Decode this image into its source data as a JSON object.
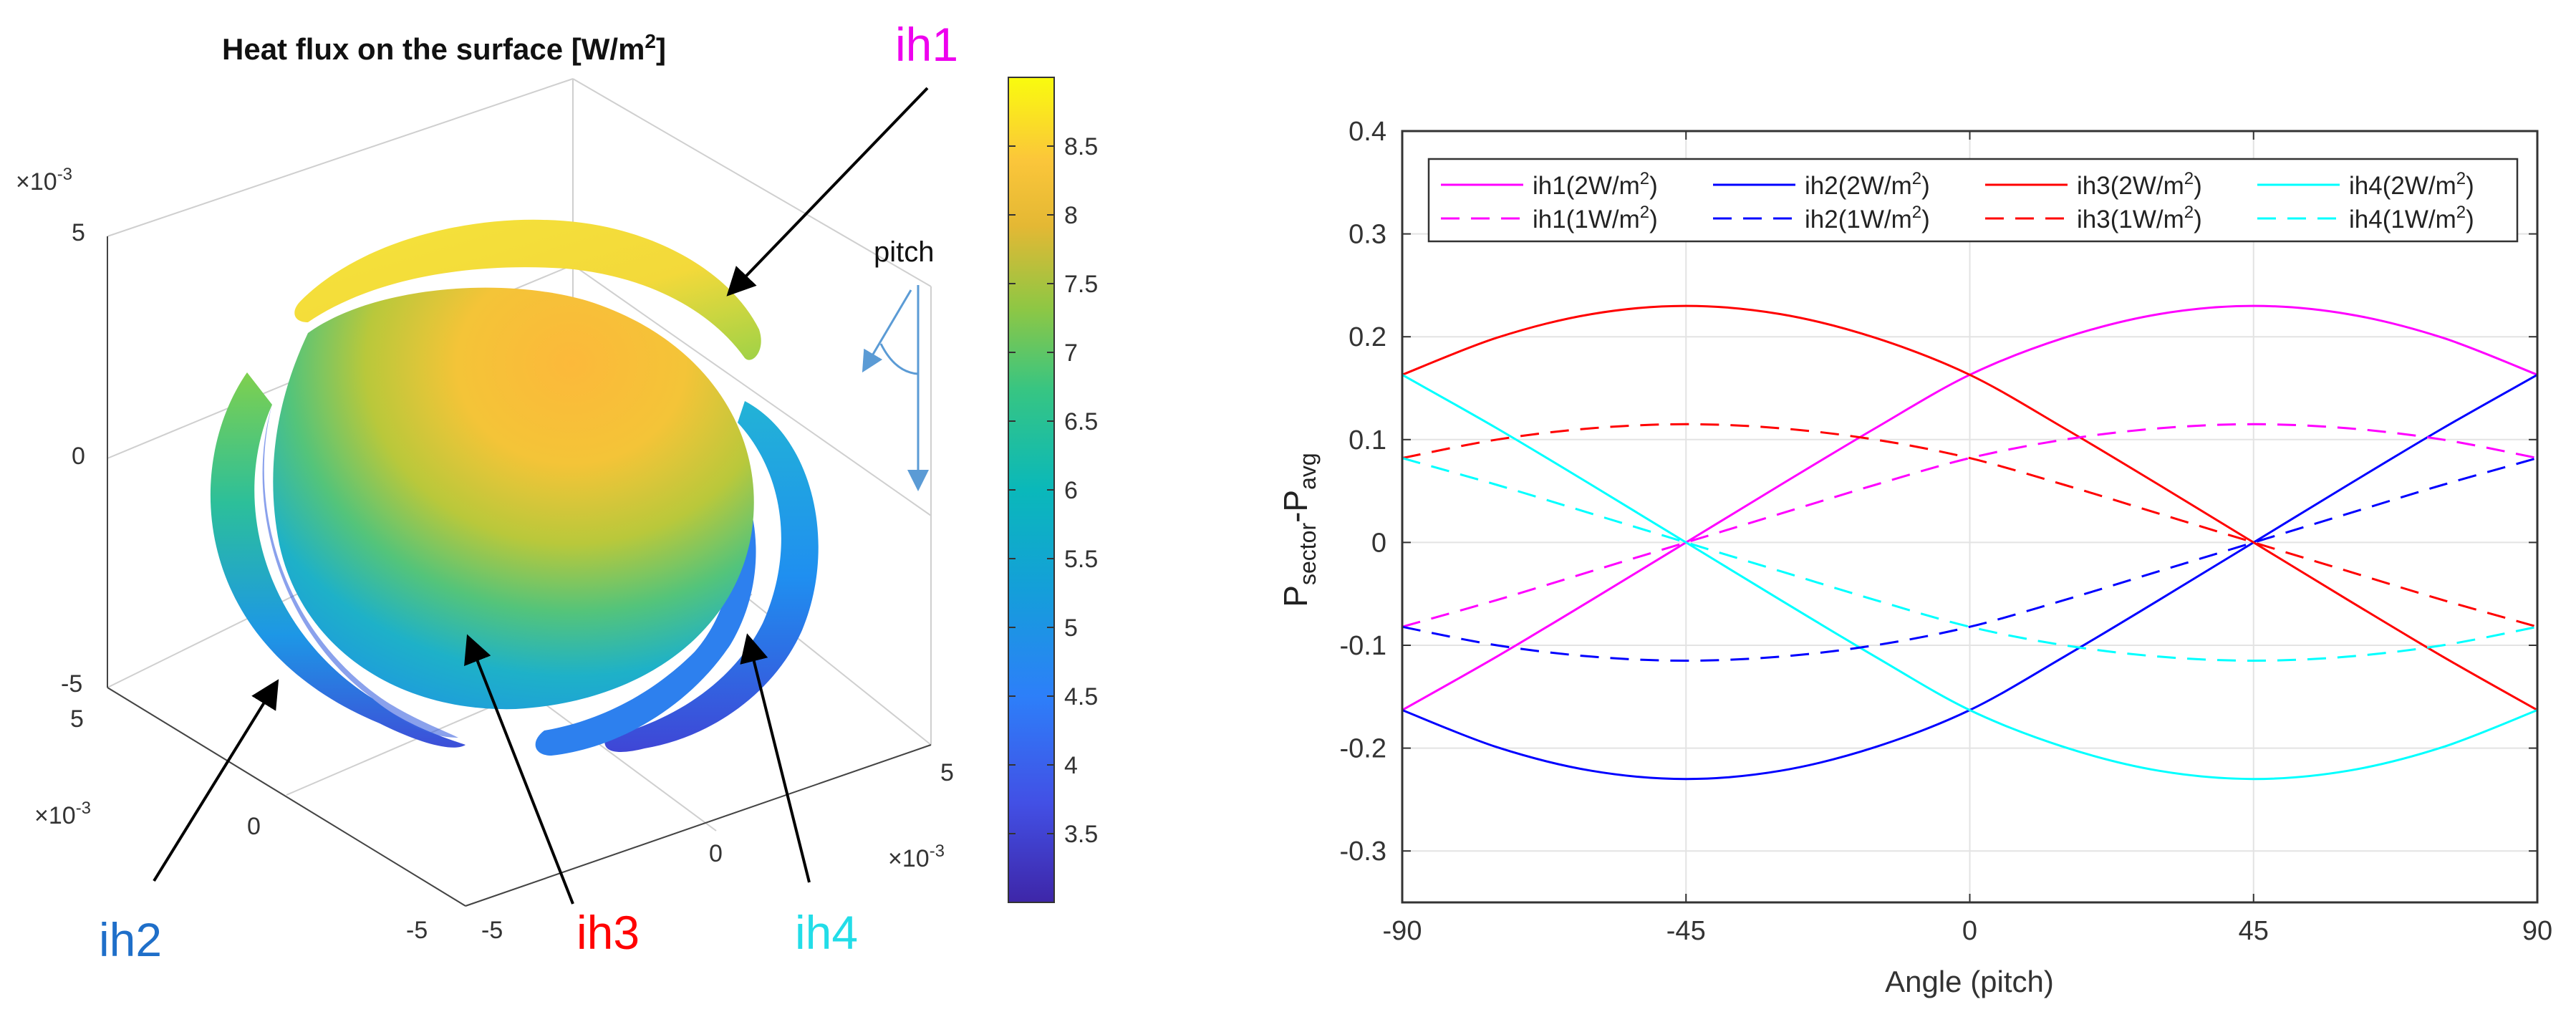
{
  "colors": {
    "ih1": "#ff00ff",
    "ih2": "#0000ff",
    "ih3": "#ff0000",
    "ih4": "#00ffff",
    "ih2_label": "#1f6fc9",
    "ih3_label": "#ff0000",
    "ih4_label": "#22dde8",
    "ih1_label": "#ee00ee",
    "pitch_arrow": "#5b9bd5"
  },
  "left_panel": {
    "title_main": "Heat flux on the surface [W/m",
    "title_sup": "2",
    "title_end": "]",
    "z_exponent_base": "×10",
    "z_exponent_power": "-3",
    "z_ticks": [
      "5",
      "0",
      "-5"
    ],
    "x_exponent_base": "×10",
    "x_exponent_power": "-3",
    "x_ticks": [
      "5",
      "0",
      "-5"
    ],
    "y_exponent_base": "×10",
    "y_exponent_power": "-3",
    "y_ticks": [
      "-5",
      "0",
      "5"
    ],
    "colorbar_ticks": [
      "8.5",
      "8",
      "7.5",
      "7",
      "6.5",
      "6",
      "5.5",
      "5",
      "4.5",
      "4",
      "3.5"
    ],
    "colorbar_range": [
      3.0,
      9.0
    ],
    "callouts": {
      "ih1": "ih1",
      "ih2": "ih2",
      "ih3": "ih3",
      "ih4": "ih4",
      "pitch": "pitch"
    }
  },
  "chart_data": {
    "type": "line",
    "title": "",
    "xlabel": "Angle (pitch)",
    "ylabel_main": "P",
    "ylabel_sub1": "sector",
    "ylabel_mid": "-P",
    "ylabel_sub2": "avg",
    "xlim": [
      -90,
      90
    ],
    "ylim": [
      -0.35,
      0.4
    ],
    "x_ticks": [
      -90,
      -45,
      0,
      45,
      90
    ],
    "x_tick_labels": [
      "-90",
      "-45",
      "0",
      "45",
      "90"
    ],
    "y_ticks": [
      -0.3,
      -0.2,
      -0.1,
      0,
      0.1,
      0.2,
      0.3,
      0.4
    ],
    "y_tick_labels": [
      "-0.3",
      "-0.2",
      "-0.1",
      "0",
      "0.1",
      "0.2",
      "0.3",
      "0.4"
    ],
    "grid": true,
    "legend_position": "top",
    "x": [
      -90,
      -75,
      -60,
      -45,
      -30,
      -15,
      0,
      15,
      30,
      45,
      60,
      75,
      90
    ],
    "series": [
      {
        "name": "ih1(2W/m²)",
        "legend_base": "ih1(2W/m",
        "legend_end": ")",
        "color": "ih1",
        "dash": "solid",
        "values": [
          -0.163,
          -0.111,
          -0.056,
          0.0,
          0.056,
          0.111,
          0.163,
          0.199,
          0.222,
          0.23,
          0.222,
          0.199,
          0.163
        ]
      },
      {
        "name": "ih2(2W/m²)",
        "legend_base": "ih2(2W/m",
        "legend_end": ")",
        "color": "ih2",
        "dash": "solid",
        "values": [
          -0.163,
          -0.199,
          -0.222,
          -0.23,
          -0.222,
          -0.199,
          -0.163,
          -0.111,
          -0.056,
          0.0,
          0.056,
          0.111,
          0.163
        ]
      },
      {
        "name": "ih3(2W/m²)",
        "legend_base": "ih3(2W/m",
        "legend_end": ")",
        "color": "ih3",
        "dash": "solid",
        "values": [
          0.163,
          0.199,
          0.222,
          0.23,
          0.222,
          0.199,
          0.163,
          0.111,
          0.056,
          0.0,
          -0.056,
          -0.111,
          -0.163
        ]
      },
      {
        "name": "ih4(2W/m²)",
        "legend_base": "ih4(2W/m",
        "legend_end": ")",
        "color": "ih4",
        "dash": "solid",
        "values": [
          0.163,
          0.111,
          0.056,
          0.0,
          -0.056,
          -0.111,
          -0.163,
          -0.199,
          -0.222,
          -0.23,
          -0.222,
          -0.199,
          -0.163
        ]
      },
      {
        "name": "ih1(1W/m²)",
        "legend_base": "ih1(1W/m",
        "legend_end": ")",
        "color": "ih1",
        "dash": "dashed",
        "values": [
          -0.082,
          -0.056,
          -0.028,
          0.0,
          0.028,
          0.056,
          0.082,
          0.1,
          0.111,
          0.115,
          0.111,
          0.1,
          0.082
        ]
      },
      {
        "name": "ih2(1W/m²)",
        "legend_base": "ih2(1W/m",
        "legend_end": ")",
        "color": "ih2",
        "dash": "dashed",
        "values": [
          -0.082,
          -0.1,
          -0.111,
          -0.115,
          -0.111,
          -0.1,
          -0.082,
          -0.056,
          -0.028,
          0.0,
          0.028,
          0.056,
          0.082
        ]
      },
      {
        "name": "ih3(1W/m²)",
        "legend_base": "ih3(1W/m",
        "legend_end": ")",
        "color": "ih3",
        "dash": "dashed",
        "values": [
          0.082,
          0.1,
          0.111,
          0.115,
          0.111,
          0.1,
          0.082,
          0.056,
          0.028,
          0.0,
          -0.028,
          -0.056,
          -0.082
        ]
      },
      {
        "name": "ih4(1W/m²)",
        "legend_base": "ih4(1W/m",
        "legend_end": ")",
        "color": "ih4",
        "dash": "dashed",
        "values": [
          0.082,
          0.056,
          0.028,
          0.0,
          -0.028,
          -0.056,
          -0.082,
          -0.1,
          -0.111,
          -0.115,
          -0.111,
          -0.1,
          -0.082
        ]
      }
    ]
  }
}
